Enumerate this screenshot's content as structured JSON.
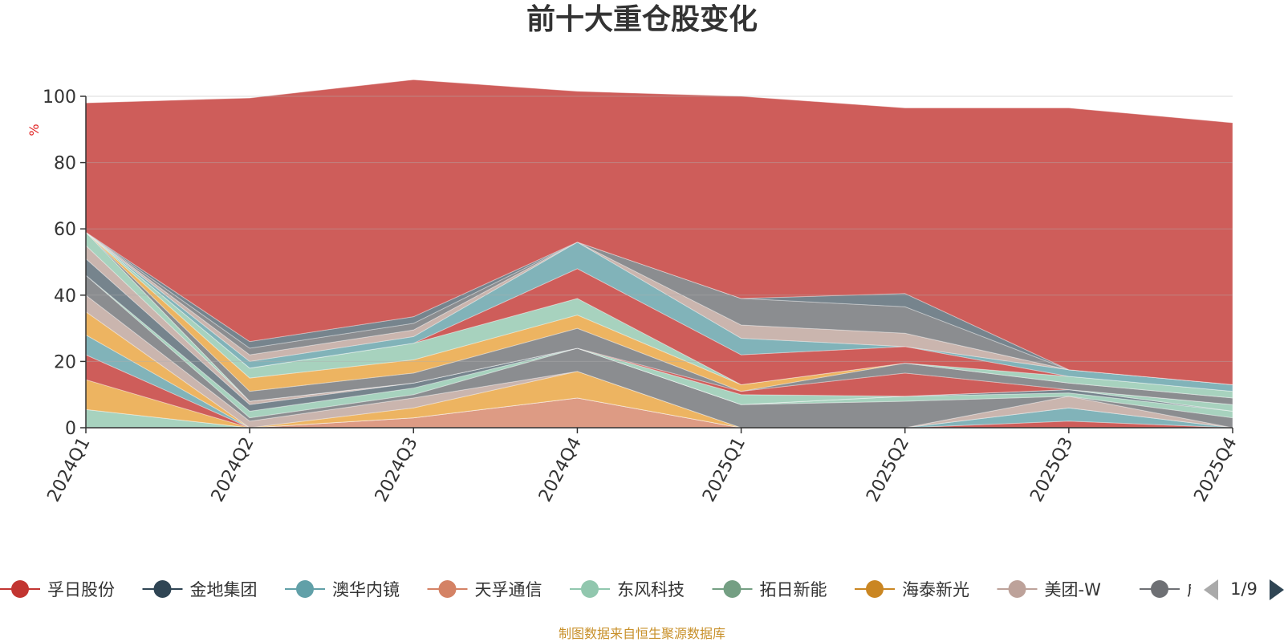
{
  "chart_data": {
    "type": "area",
    "title": "前十大重仓股变化",
    "ylabel": "%",
    "ylim": [
      0,
      100
    ],
    "yticks": [
      0,
      20,
      40,
      60,
      80,
      100
    ],
    "categories": [
      "2024Q1",
      "2024Q2",
      "2024Q3",
      "2024Q4",
      "2025Q1",
      "2025Q2",
      "2025Q3",
      "2025Q4"
    ],
    "grid": true,
    "stacked": true,
    "legend_position": "bottom",
    "series": [
      {
        "name": "",
        "color": "#91c7ae",
        "values": [
          5.5,
          0,
          0,
          0,
          0,
          0,
          0,
          0
        ]
      },
      {
        "name": "",
        "color": "#d48265",
        "values": [
          0,
          0,
          3,
          9,
          0,
          0,
          0,
          0
        ]
      },
      {
        "name": "",
        "color": "#e8a13a",
        "values": [
          9,
          0,
          0,
          0,
          0,
          0,
          0,
          0
        ]
      },
      {
        "name": "",
        "color": "#c23531",
        "values": [
          7.5,
          0,
          0,
          0,
          0,
          0,
          2,
          0
        ]
      },
      {
        "name": "",
        "color": "#61a0a8",
        "values": [
          6,
          0,
          0,
          0,
          0,
          0,
          4,
          0
        ]
      },
      {
        "name": "",
        "color": "#e8a13a",
        "values": [
          7,
          0,
          3,
          8,
          0,
          0,
          0,
          0
        ]
      },
      {
        "name": "",
        "color": "#bda29a",
        "values": [
          5,
          2,
          3,
          0,
          0,
          0,
          3.5,
          0
        ]
      },
      {
        "name": "",
        "color": "#6e7074",
        "values": [
          6,
          1,
          1,
          7,
          7,
          8,
          0,
          3
        ]
      },
      {
        "name": "",
        "color": "#91c7ae",
        "values": [
          0,
          2,
          2,
          0,
          0,
          1.5,
          1,
          2
        ]
      },
      {
        "name": "",
        "color": "#546570",
        "values": [
          5,
          2,
          1.5,
          0,
          0,
          0,
          1,
          0
        ]
      },
      {
        "name": "",
        "color": "#bda29a",
        "values": [
          4,
          1,
          0,
          0,
          0,
          0,
          0,
          0
        ]
      },
      {
        "name": "",
        "color": "#91c7ae",
        "values": [
          4,
          0,
          0,
          0,
          3,
          0,
          0,
          2
        ]
      },
      {
        "name": "",
        "color": "#c23531",
        "values": [
          0,
          0,
          0,
          0,
          1,
          7,
          0,
          0
        ]
      },
      {
        "name": "",
        "color": "#6e7074",
        "values": [
          0,
          3,
          3,
          6,
          0,
          3,
          2,
          2
        ]
      },
      {
        "name": "",
        "color": "#e8a13a",
        "values": [
          0,
          4,
          4,
          4,
          2,
          0,
          0,
          0
        ]
      },
      {
        "name": "",
        "color": "#91c7ae",
        "values": [
          0,
          3,
          5,
          5,
          0,
          0,
          2,
          2
        ]
      },
      {
        "name": "",
        "color": "#c23531",
        "values": [
          0,
          0,
          0,
          9,
          9,
          5,
          0,
          0
        ]
      },
      {
        "name": "",
        "color": "#61a0a8",
        "values": [
          0,
          2,
          2,
          8,
          5,
          0,
          2,
          2
        ]
      },
      {
        "name": "",
        "color": "#bda29a",
        "values": [
          0,
          2,
          2,
          0,
          4,
          4,
          0,
          0
        ]
      },
      {
        "name": "",
        "color": "#6e7074",
        "values": [
          0,
          2,
          2,
          0,
          8,
          8,
          0,
          0
        ]
      },
      {
        "name": "",
        "color": "#546570",
        "values": [
          0,
          2,
          2,
          0,
          0,
          4,
          0,
          0
        ]
      },
      {
        "name": "",
        "color": "#c23531",
        "values": [
          39,
          73.5,
          71.5,
          45.5,
          61,
          56,
          79,
          79
        ]
      }
    ]
  },
  "legend": {
    "items": [
      {
        "label": "孚日股份",
        "color": "#c23531"
      },
      {
        "label": "金地集团",
        "color": "#2f4554"
      },
      {
        "label": "澳华内镜",
        "color": "#61a0a8"
      },
      {
        "label": "天孚通信",
        "color": "#d48265"
      },
      {
        "label": "东风科技",
        "color": "#91c7ae"
      },
      {
        "label": "拓日新能",
        "color": "#749f83"
      },
      {
        "label": "海泰新光",
        "color": "#ca8622"
      },
      {
        "label": "美团-W",
        "color": "#bda29a"
      },
      {
        "label": "成",
        "color": "#6e7074"
      }
    ],
    "page": "1/9"
  },
  "source_note": "制图数据来自恒生聚源数据库"
}
